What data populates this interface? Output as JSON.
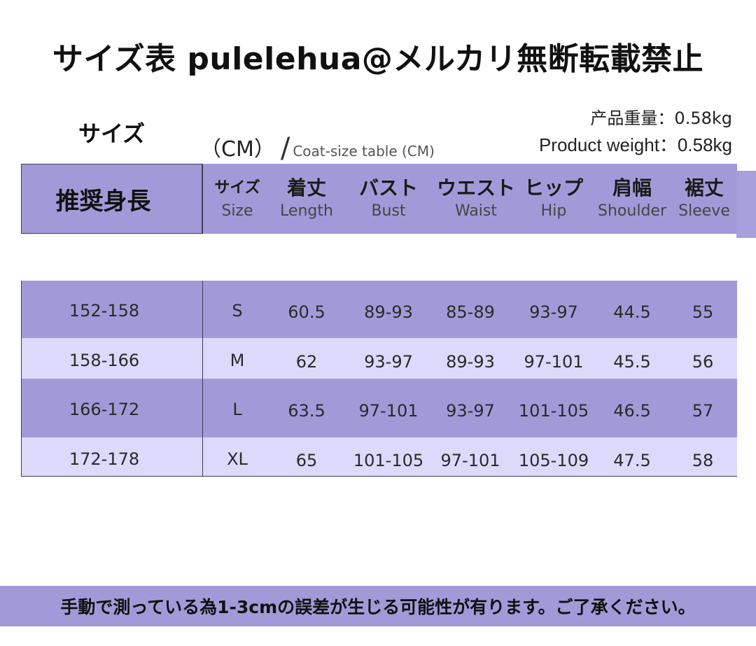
{
  "title": "サイズ表 pulelehua@メルカリ無断転載禁止",
  "size_word": "サイズ",
  "unit": "（CM）",
  "coat_label": "Coat-size table (CM)",
  "weight_jp": "产品重量：0.58kg",
  "weight_en": "Product weight：0.58kg",
  "header": {
    "height_label": "推奨身長",
    "columns": [
      {
        "jp": "サイズ",
        "en": "Size"
      },
      {
        "jp": "着丈",
        "en": "Length"
      },
      {
        "jp": "バスト",
        "en": "Bust"
      },
      {
        "jp": "ウエスト",
        "en": "Waist"
      },
      {
        "jp": "ヒップ",
        "en": "Hip"
      },
      {
        "jp": "肩幅",
        "en": "Shoulder"
      },
      {
        "jp": "裾丈",
        "en": "Sleeve"
      }
    ]
  },
  "rows": [
    {
      "height": "152-158",
      "size": "S",
      "length": "60.5",
      "bust": "89-93",
      "waist": "85-89",
      "hip": "93-97",
      "shoulder": "44.5",
      "sleeve": "55"
    },
    {
      "height": "158-166",
      "size": "M",
      "length": "62",
      "bust": "93-97",
      "waist": "89-93",
      "hip": "97-101",
      "shoulder": "45.5",
      "sleeve": "56"
    },
    {
      "height": "166-172",
      "size": "L",
      "length": "63.5",
      "bust": "97-101",
      "waist": "93-97",
      "hip": "101-105",
      "shoulder": "46.5",
      "sleeve": "57"
    },
    {
      "height": "172-178",
      "size": "XL",
      "length": "65",
      "bust": "101-105",
      "waist": "97-101",
      "hip": "105-109",
      "shoulder": "47.5",
      "sleeve": "58"
    }
  ],
  "footer": "手動で測っている為1-3cmの誤差が生じる可能性が有ります。ご了承ください。",
  "colors": {
    "band": "#a29ad8",
    "light_band": "#dcd9fb"
  }
}
